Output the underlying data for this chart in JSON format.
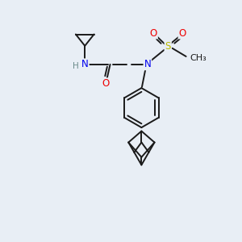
{
  "bg_color": "#e8eef5",
  "bond_color": "#1a1a1a",
  "atom_colors": {
    "N": "#0000ee",
    "O": "#ee0000",
    "S": "#bbbb00",
    "H": "#6a8a8a",
    "C": "#1a1a1a"
  },
  "lw": 1.4,
  "font_size": 8.5,
  "figsize": [
    3.0,
    3.0
  ],
  "dpi": 100
}
